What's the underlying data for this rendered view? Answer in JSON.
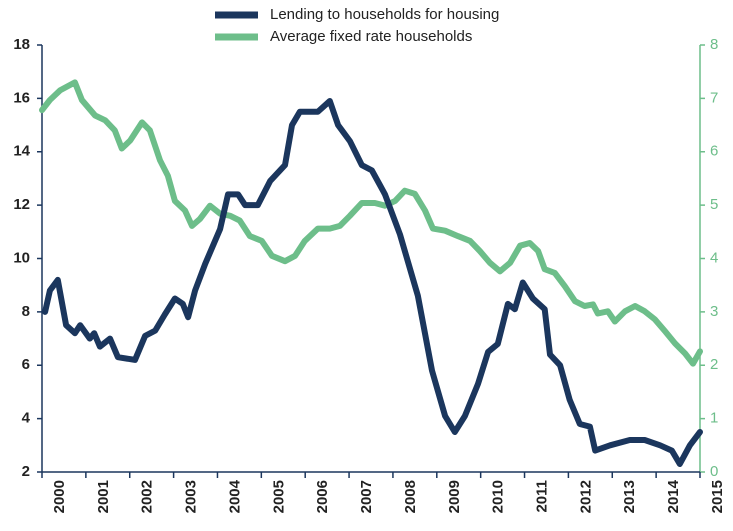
{
  "chart_data": {
    "type": "line",
    "xlim": [
      2000,
      2015
    ],
    "xticks": [
      2000,
      2001,
      2002,
      2003,
      2004,
      2005,
      2006,
      2007,
      2008,
      2009,
      2010,
      2011,
      2012,
      2013,
      2014,
      2015
    ],
    "ylim": [
      2,
      18
    ],
    "yticks": [
      2,
      4,
      6,
      8,
      10,
      12,
      14,
      16,
      18
    ],
    "y2lim": [
      0,
      8
    ],
    "y2ticks": [
      0,
      1,
      2,
      3,
      4,
      5,
      6,
      7,
      8
    ],
    "series": [
      {
        "name": "Lending to households for housing",
        "color": "#1b365d",
        "axis": "y",
        "x": [
          2000.07,
          2000.18,
          2000.36,
          2000.55,
          2000.75,
          2000.87,
          2001.09,
          2001.19,
          2001.32,
          2001.55,
          2001.73,
          2002.12,
          2002.35,
          2002.58,
          2002.8,
          2003.03,
          2003.21,
          2003.33,
          2003.49,
          2003.72,
          2004.06,
          2004.24,
          2004.47,
          2004.63,
          2004.92,
          2005.2,
          2005.54,
          2005.7,
          2005.88,
          2006.29,
          2006.56,
          2006.75,
          2007.02,
          2007.29,
          2007.52,
          2007.82,
          2008.16,
          2008.57,
          2008.89,
          2009.19,
          2009.41,
          2009.64,
          2009.94,
          2010.17,
          2010.39,
          2010.62,
          2010.78,
          2010.96,
          2011.19,
          2011.46,
          2011.58,
          2011.81,
          2012.03,
          2012.26,
          2012.49,
          2012.61,
          2012.95,
          2013.4,
          2013.74,
          2014.09,
          2014.36,
          2014.54,
          2014.77,
          2015.0
        ],
        "values": [
          8.0,
          8.8,
          9.2,
          7.5,
          7.2,
          7.5,
          7.0,
          7.2,
          6.7,
          7.0,
          6.3,
          6.2,
          7.1,
          7.3,
          7.9,
          8.5,
          8.3,
          7.8,
          8.8,
          9.8,
          11.1,
          12.4,
          12.4,
          12.0,
          12.0,
          12.9,
          13.5,
          15.0,
          15.5,
          15.5,
          15.9,
          15.0,
          14.4,
          13.5,
          13.3,
          12.4,
          10.9,
          8.6,
          5.8,
          4.1,
          3.5,
          4.1,
          5.3,
          6.5,
          6.8,
          8.3,
          8.1,
          9.1,
          8.5,
          8.1,
          6.4,
          6.0,
          4.7,
          3.8,
          3.7,
          2.8,
          3.0,
          3.2,
          3.2,
          3.0,
          2.8,
          2.3,
          3.0,
          3.5
        ]
      },
      {
        "name": "Average fixed rate households",
        "color": "#6dbe8a",
        "axis": "y2",
        "x": [
          2000.0,
          2000.18,
          2000.41,
          2000.75,
          2000.91,
          2001.21,
          2001.44,
          2001.66,
          2001.82,
          2002.01,
          2002.28,
          2002.46,
          2002.69,
          2002.87,
          2003.03,
          2003.26,
          2003.42,
          2003.6,
          2003.83,
          2004.06,
          2004.29,
          2004.51,
          2004.74,
          2005.01,
          2005.24,
          2005.54,
          2005.77,
          2005.99,
          2006.29,
          2006.56,
          2006.79,
          2007.02,
          2007.29,
          2007.59,
          2007.82,
          2008.05,
          2008.27,
          2008.5,
          2008.73,
          2008.91,
          2009.19,
          2009.48,
          2009.76,
          2009.98,
          2010.21,
          2010.44,
          2010.67,
          2010.9,
          2011.12,
          2011.31,
          2011.46,
          2011.69,
          2011.92,
          2012.15,
          2012.37,
          2012.56,
          2012.67,
          2012.9,
          2013.06,
          2013.29,
          2013.52,
          2013.74,
          2013.97,
          2014.2,
          2014.43,
          2014.66,
          2014.84,
          2015.0
        ],
        "values": [
          6.78,
          6.97,
          7.15,
          7.3,
          6.97,
          6.68,
          6.59,
          6.4,
          6.06,
          6.21,
          6.55,
          6.4,
          5.84,
          5.55,
          5.08,
          4.9,
          4.61,
          4.74,
          4.99,
          4.84,
          4.8,
          4.71,
          4.42,
          4.33,
          4.05,
          3.95,
          4.05,
          4.33,
          4.56,
          4.56,
          4.61,
          4.8,
          5.04,
          5.04,
          4.99,
          5.08,
          5.27,
          5.21,
          4.9,
          4.56,
          4.52,
          4.42,
          4.33,
          4.14,
          3.92,
          3.76,
          3.92,
          4.24,
          4.29,
          4.14,
          3.8,
          3.73,
          3.48,
          3.2,
          3.11,
          3.14,
          2.97,
          3.01,
          2.82,
          3.01,
          3.11,
          3.01,
          2.86,
          2.64,
          2.41,
          2.22,
          2.03,
          2.26
        ]
      }
    ]
  }
}
